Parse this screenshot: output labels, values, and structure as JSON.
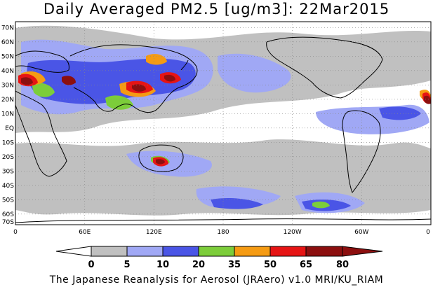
{
  "title": "Daily Averaged PM2.5 [ug/m3]: 22Mar2015",
  "credit": "The Japanese Reanalysis for Aerosol (JRAero) v1.0 MRI/KU_RIAM",
  "lat_labels": [
    "70N",
    "60N",
    "50N",
    "40N",
    "30N",
    "20N",
    "10N",
    "EQ",
    "10S",
    "20S",
    "30S",
    "40S",
    "50S",
    "60S",
    "70S"
  ],
  "lon_labels": [
    "0",
    "60E",
    "120E",
    "180",
    "120W",
    "60W",
    "0"
  ],
  "colorbar": {
    "ticks": [
      "0",
      "5",
      "10",
      "20",
      "35",
      "50",
      "65",
      "80"
    ],
    "colors": [
      "#ffffff",
      "#c0c0c0",
      "#a0a8f5",
      "#4a55e6",
      "#7ccd3a",
      "#f59b13",
      "#e61414",
      "#8c0f0f"
    ]
  }
}
